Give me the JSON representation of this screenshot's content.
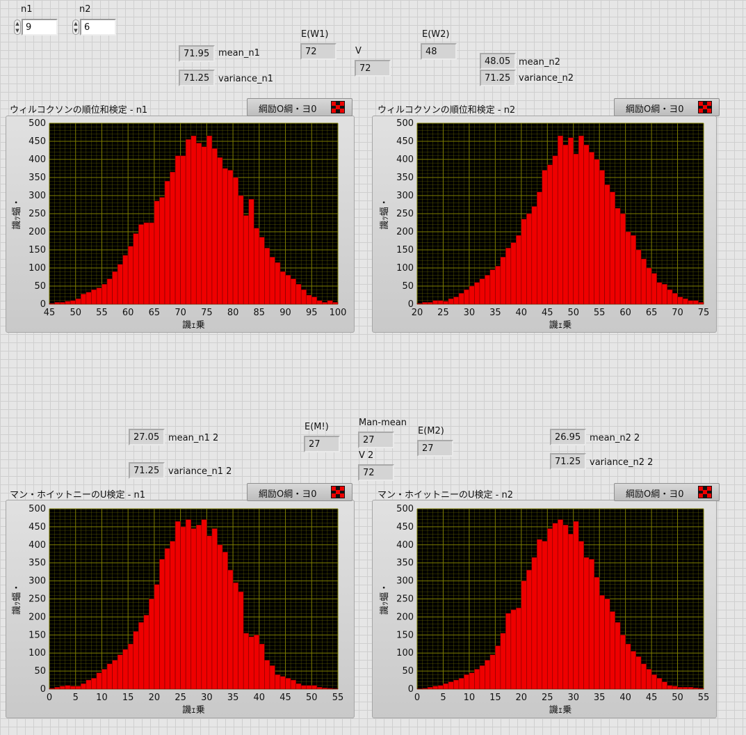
{
  "controls": {
    "n1": {
      "label": "n1",
      "value": "9"
    },
    "n2": {
      "label": "n2",
      "value": "6"
    }
  },
  "wilcoxon": {
    "mean_n1": {
      "label": "mean_n1",
      "value": "71.95"
    },
    "variance_n1": {
      "label": "variance_n1",
      "value": "71.25"
    },
    "ew1": {
      "label": "E(W1)",
      "value": "72"
    },
    "v": {
      "label": "V",
      "value": "72"
    },
    "ew2": {
      "label": "E(W2)",
      "value": "48"
    },
    "mean_n2": {
      "label": "mean_n2",
      "value": "48.05"
    },
    "variance_n2": {
      "label": "variance_n2",
      "value": "71.25"
    }
  },
  "mann": {
    "mean_n1": {
      "label": "mean_n1 2",
      "value": "27.05"
    },
    "variance_n1": {
      "label": "variance_n1 2",
      "value": "71.25"
    },
    "em1": {
      "label": "E(M!)",
      "value": "27"
    },
    "man_mean": {
      "label": "Man-mean",
      "value": "27"
    },
    "v2": {
      "label": "V 2",
      "value": "72"
    },
    "em2": {
      "label": "E(M2)",
      "value": "27"
    },
    "mean_n2": {
      "label": "mean_n2 2",
      "value": "26.95"
    },
    "variance_n2": {
      "label": "variance_n2 2",
      "value": "71.25"
    }
  },
  "legend_label": "綱励O綱・ヨ0",
  "colors": {
    "plot_bg": "#000000",
    "grid": "#7f7f00",
    "bar": "#ee0000",
    "bar_edge": "#7a0000"
  },
  "chart_data": [
    {
      "type": "bar",
      "title": "ウィルコクソンの順位和検定 - n1",
      "xlabel": "譏ｪ乗",
      "ylabel": "譏ｯ蝠・",
      "xlim": [
        45,
        100
      ],
      "ylim": [
        0,
        500
      ],
      "xticks": [
        45,
        50,
        55,
        60,
        65,
        70,
        75,
        80,
        85,
        90,
        95,
        100
      ],
      "yticks": [
        0,
        50,
        100,
        150,
        200,
        250,
        300,
        350,
        400,
        450,
        500
      ],
      "x": [
        45,
        46,
        47,
        48,
        49,
        50,
        51,
        52,
        53,
        54,
        55,
        56,
        57,
        58,
        59,
        60,
        61,
        62,
        63,
        64,
        65,
        66,
        67,
        68,
        69,
        70,
        71,
        72,
        73,
        74,
        75,
        76,
        77,
        78,
        79,
        80,
        81,
        82,
        83,
        84,
        85,
        86,
        87,
        88,
        89,
        90,
        91,
        92,
        93,
        94,
        95,
        96,
        97,
        98,
        99
      ],
      "values": [
        2,
        5,
        5,
        8,
        10,
        15,
        28,
        33,
        40,
        45,
        55,
        70,
        90,
        110,
        135,
        160,
        195,
        220,
        225,
        225,
        285,
        295,
        340,
        365,
        410,
        410,
        455,
        465,
        445,
        435,
        465,
        430,
        405,
        375,
        370,
        350,
        300,
        245,
        290,
        210,
        185,
        155,
        130,
        115,
        90,
        80,
        70,
        55,
        40,
        25,
        20,
        10,
        5,
        10,
        5
      ]
    },
    {
      "type": "bar",
      "title": "ウィルコクソンの順位和検定 - n2",
      "xlabel": "譏ｪ乗",
      "ylabel": "譏ｯ蝠・",
      "xlim": [
        20,
        75
      ],
      "ylim": [
        0,
        500
      ],
      "xticks": [
        20,
        25,
        30,
        35,
        40,
        45,
        50,
        55,
        60,
        65,
        70,
        75
      ],
      "yticks": [
        0,
        50,
        100,
        150,
        200,
        250,
        300,
        350,
        400,
        450,
        500
      ],
      "x": [
        20,
        21,
        22,
        23,
        24,
        25,
        26,
        27,
        28,
        29,
        30,
        31,
        32,
        33,
        34,
        35,
        36,
        37,
        38,
        39,
        40,
        41,
        42,
        43,
        44,
        45,
        46,
        47,
        48,
        49,
        50,
        51,
        52,
        53,
        54,
        55,
        56,
        57,
        58,
        59,
        60,
        61,
        62,
        63,
        64,
        65,
        66,
        67,
        68,
        69,
        70,
        71,
        72,
        73,
        74
      ],
      "values": [
        2,
        5,
        5,
        10,
        10,
        8,
        15,
        20,
        30,
        40,
        50,
        60,
        70,
        80,
        95,
        105,
        130,
        155,
        170,
        190,
        235,
        250,
        270,
        310,
        370,
        385,
        410,
        465,
        440,
        460,
        415,
        465,
        440,
        420,
        400,
        370,
        330,
        310,
        265,
        250,
        200,
        190,
        150,
        125,
        100,
        85,
        60,
        55,
        40,
        30,
        20,
        15,
        10,
        10,
        5
      ]
    },
    {
      "type": "bar",
      "title": "マン・ホイットニーのU検定 - n1",
      "xlabel": "譏ｪ乗",
      "ylabel": "譏ｯ蝠・",
      "xlim": [
        0,
        55
      ],
      "ylim": [
        0,
        500
      ],
      "xticks": [
        0,
        5,
        10,
        15,
        20,
        25,
        30,
        35,
        40,
        45,
        50,
        55
      ],
      "yticks": [
        0,
        50,
        100,
        150,
        200,
        250,
        300,
        350,
        400,
        450,
        500
      ],
      "x": [
        0,
        1,
        2,
        3,
        4,
        5,
        6,
        7,
        8,
        9,
        10,
        11,
        12,
        13,
        14,
        15,
        16,
        17,
        18,
        19,
        20,
        21,
        22,
        23,
        24,
        25,
        26,
        27,
        28,
        29,
        30,
        31,
        32,
        33,
        34,
        35,
        36,
        37,
        38,
        39,
        40,
        41,
        42,
        43,
        44,
        45,
        46,
        47,
        48,
        49,
        50,
        51,
        52,
        53,
        54
      ],
      "values": [
        2,
        5,
        8,
        10,
        8,
        8,
        15,
        25,
        30,
        45,
        55,
        70,
        80,
        95,
        110,
        125,
        160,
        185,
        205,
        250,
        290,
        360,
        390,
        410,
        465,
        450,
        470,
        445,
        455,
        470,
        425,
        445,
        400,
        380,
        330,
        295,
        270,
        155,
        145,
        150,
        125,
        80,
        65,
        40,
        35,
        30,
        25,
        15,
        10,
        10,
        10,
        5,
        3,
        2,
        1
      ]
    },
    {
      "type": "bar",
      "title": "マン・ホイットニーのU検定 - n2",
      "xlabel": "譏ｪ乗",
      "ylabel": "譏ｯ蝠・",
      "xlim": [
        0,
        55
      ],
      "ylim": [
        0,
        500
      ],
      "xticks": [
        0,
        5,
        10,
        15,
        20,
        25,
        30,
        35,
        40,
        45,
        50,
        55
      ],
      "yticks": [
        0,
        50,
        100,
        150,
        200,
        250,
        300,
        350,
        400,
        450,
        500
      ],
      "x": [
        0,
        1,
        2,
        3,
        4,
        5,
        6,
        7,
        8,
        9,
        10,
        11,
        12,
        13,
        14,
        15,
        16,
        17,
        18,
        19,
        20,
        21,
        22,
        23,
        24,
        25,
        26,
        27,
        28,
        29,
        30,
        31,
        32,
        33,
        34,
        35,
        36,
        37,
        38,
        39,
        40,
        41,
        42,
        43,
        44,
        45,
        46,
        47,
        48,
        49,
        50,
        51,
        52,
        53,
        54
      ],
      "values": [
        1,
        2,
        5,
        8,
        10,
        15,
        20,
        25,
        30,
        40,
        45,
        55,
        65,
        80,
        95,
        120,
        155,
        210,
        220,
        225,
        300,
        330,
        365,
        415,
        410,
        445,
        460,
        470,
        455,
        430,
        465,
        410,
        365,
        360,
        310,
        260,
        250,
        215,
        185,
        150,
        125,
        105,
        90,
        70,
        55,
        40,
        30,
        20,
        10,
        8,
        5,
        5,
        5,
        3,
        2
      ]
    }
  ]
}
